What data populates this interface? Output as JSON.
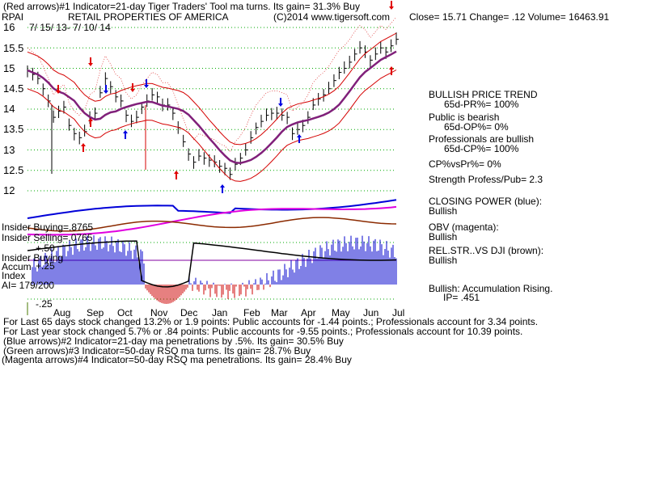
{
  "header": {
    "line1": "(Red arrows)#1 Indicator=21-day Tiger Traders' Tool ma turns. Its gain= 31.3% Buy",
    "ticker": "RPAI",
    "title": "RETAIL PROPERTIES OF AMERICA",
    "copyright": "(C)2014 www.tigersoft.com",
    "quote": "Close=  15.71   Change= .12 Volume= 16463.91",
    "date_range": "7/ 15/ 13-  7/ 10/ 14"
  },
  "right_panel": {
    "trend": "BULLISH PRICE TREND",
    "pr": "65d-PR%= 100%",
    "public": "Public is bearish",
    "op": "65d-OP%= 0%",
    "pros": "Professionals are bullish",
    "cp": "65d-CP%= 100%",
    "cpvspr": "CP%vsPr%=  0%",
    "strength": "Strength Profess/Pub= 2.3",
    "closing_power": "CLOSING POWER (blue):",
    "closing_power_val": "Bullish",
    "obv": "OBV (magenta):",
    "obv_val": "Bullish",
    "relstr": "REL.STR..VS DJI (brown):",
    "relstr_val": "Bullish",
    "accum": "Bullish: Accumulation Rising.",
    "ip": "IP=  .451"
  },
  "left_labels": {
    "insider_buying_top": "Insider Buying=.8765",
    "insider_selling": "Insider Selling=.0765",
    "plus50": "+.50",
    "insider_buying": "Insider Buying",
    "accum": "Accum",
    "plus25": "+.25",
    "index": "Index",
    "ai": "AI= 179/200",
    "minus25": "-.25"
  },
  "footer": {
    "line1": "For Last 65 days stock changed  13.2% or  1.9 points:  Public accounts for -1.44 points.;  Professionals account for  3.34 points.",
    "line2": "For Last year stock changed  5.7% or  .84 points:  Public accounts for -9.55 points.;  Professionals account for  10.39 points.",
    "line3": "(Blue arrows)#2 Indicator=21-day ma penetrations by .5%. Its gain= 30.5% Buy",
    "line4": "(Green arrows)#3 Indicator=50-day RSQ ma turns. Its gain= 28.7% Buy",
    "line5": "(Magenta arrows)#4 Indicator=50-day RSQ ma penetrations. Its gain= 28.4% Buy"
  },
  "colors": {
    "price": "#000000",
    "bands": "#d40000",
    "ma": "#80207a",
    "closing_power": "#0000d8",
    "obv": "#e000e0",
    "relstr": "#8b2a00",
    "accum_pos": "#0000cc",
    "accum_neg": "#cc0000",
    "grid": "#00aa00",
    "arrow_red": "#e00000",
    "arrow_blue": "#0000e0"
  },
  "chart_data": {
    "type": "line",
    "ylim": [
      11.9,
      16.1
    ],
    "y_ticks": [
      "16",
      "15.5",
      "15",
      "14.5",
      "14",
      "13.5",
      "13",
      "12.5",
      "12"
    ],
    "x_ticks": [
      "Aug",
      "Sep",
      "Oct",
      "Nov",
      "Dec",
      "Jan",
      "Feb",
      "Mar",
      "Apr",
      "May",
      "Jun",
      "Jul"
    ],
    "series": [
      {
        "values": [
          14.95,
          14.85,
          14.75,
          14.5,
          14.2,
          13.8,
          13.95,
          14.05,
          13.6,
          13.4,
          13.3,
          13.45,
          13.8,
          13.9,
          14.4,
          14.75,
          14.55,
          14.3,
          14.2,
          13.85,
          13.7,
          13.8,
          14.05,
          14.2,
          14.35,
          14.3,
          14.1,
          14.1,
          13.9,
          13.55,
          13.2,
          12.9,
          12.7,
          12.85,
          12.8,
          12.75,
          12.7,
          12.6,
          12.55,
          12.4,
          12.65,
          12.8,
          13.0,
          13.3,
          13.55,
          13.7,
          13.85,
          13.9,
          13.9,
          13.85,
          13.8,
          13.4,
          13.5,
          13.6,
          13.8,
          14.1,
          14.25,
          14.35,
          14.5,
          14.7,
          14.9,
          15.0,
          15.15,
          15.35,
          15.5,
          15.4,
          15.2,
          15.35,
          15.5,
          15.4,
          15.55,
          15.71
        ]
      }
    ]
  }
}
